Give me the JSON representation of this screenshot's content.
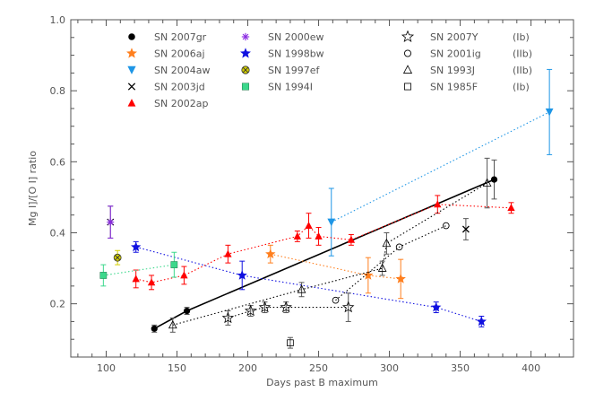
{
  "chart_data": {
    "type": "scatter",
    "xlabel": "Days past B maximum",
    "ylabel": "Mg I]/[O I] ratio",
    "xlim": [
      75,
      430
    ],
    "ylim": [
      0.05,
      1.0
    ],
    "xticks": [
      100,
      150,
      200,
      250,
      300,
      350,
      400
    ],
    "yticks": [
      0.2,
      0.4,
      0.6,
      0.8,
      1.0
    ],
    "grid": false,
    "legend_placement": "top, three columns",
    "series": [
      {
        "name": "SN 2007gr",
        "marker": "filled-circle",
        "color": "#000000",
        "line": "solid",
        "points": [
          {
            "x": 134,
            "y": 0.13,
            "err": 0.01
          },
          {
            "x": 157,
            "y": 0.18,
            "err": 0.01
          },
          {
            "x": 374,
            "y": 0.55,
            "err": 0.055
          }
        ]
      },
      {
        "name": "SN 2006aj",
        "marker": "filled-star",
        "color": "#ff7f1e",
        "line": "dotted",
        "points": [
          {
            "x": 216,
            "y": 0.34,
            "err": 0.025
          },
          {
            "x": 285,
            "y": 0.28,
            "err": 0.05
          },
          {
            "x": 308,
            "y": 0.27,
            "err": 0.055
          }
        ]
      },
      {
        "name": "SN 2004aw",
        "marker": "filled-triangle-down",
        "color": "#1e96e6",
        "line": "dotted",
        "points": [
          {
            "x": 259,
            "y": 0.43,
            "err": 0.095
          },
          {
            "x": 413,
            "y": 0.74,
            "err": 0.12
          }
        ]
      },
      {
        "name": "SN 2003jd",
        "marker": "cross",
        "color": "#000000",
        "line": "none",
        "points": [
          {
            "x": 103,
            "y": 0.43,
            "err": 0.045
          },
          {
            "x": 354,
            "y": 0.41,
            "err": 0.03
          }
        ]
      },
      {
        "name": "SN 2002ap",
        "marker": "filled-triangle-up",
        "color": "#ff0000",
        "line": "dotted",
        "points": [
          {
            "x": 121,
            "y": 0.27,
            "err": 0.025
          },
          {
            "x": 132,
            "y": 0.26,
            "err": 0.02
          },
          {
            "x": 155,
            "y": 0.28,
            "err": 0.025
          },
          {
            "x": 186,
            "y": 0.34,
            "err": 0.025
          },
          {
            "x": 235,
            "y": 0.39,
            "err": 0.015
          },
          {
            "x": 243,
            "y": 0.42,
            "err": 0.035
          },
          {
            "x": 250,
            "y": 0.39,
            "err": 0.025
          },
          {
            "x": 273,
            "y": 0.38,
            "err": 0.015
          },
          {
            "x": 334,
            "y": 0.48,
            "err": 0.025
          },
          {
            "x": 386,
            "y": 0.47,
            "err": 0.015
          }
        ]
      },
      {
        "name": "SN 2000ew",
        "marker": "asterisk",
        "color": "#8a2be2",
        "line": "none",
        "points": [
          {
            "x": 103,
            "y": 0.43,
            "err": 0.045
          }
        ]
      },
      {
        "name": "SN 1998bw",
        "marker": "filled-star",
        "color": "#1010e0",
        "line": "dotted",
        "points": [
          {
            "x": 121,
            "y": 0.36,
            "err": 0.015
          },
          {
            "x": 196,
            "y": 0.28,
            "err": 0.04
          },
          {
            "x": 333,
            "y": 0.19,
            "err": 0.015
          },
          {
            "x": 365,
            "y": 0.15,
            "err": 0.015
          }
        ]
      },
      {
        "name": "SN 1997ef",
        "marker": "circle-cross",
        "color": "#d4d000",
        "line": "none",
        "points": [
          {
            "x": 108,
            "y": 0.33,
            "err": 0.02
          }
        ]
      },
      {
        "name": "SN 1994I",
        "marker": "filled-square",
        "color": "#3cd88c",
        "line": "dotted",
        "points": [
          {
            "x": 98,
            "y": 0.28,
            "err": 0.03
          },
          {
            "x": 148,
            "y": 0.31,
            "err": 0.035
          }
        ]
      },
      {
        "name": "SN 2007Y",
        "marker": "open-star",
        "color": "#000000",
        "line": "dotted",
        "note": "(Ib)",
        "points": [
          {
            "x": 186,
            "y": 0.16,
            "err": 0.02
          },
          {
            "x": 202,
            "y": 0.18,
            "err": 0.015
          },
          {
            "x": 212,
            "y": 0.19,
            "err": 0.015
          },
          {
            "x": 227,
            "y": 0.19,
            "err": 0.015
          },
          {
            "x": 271,
            "y": 0.19,
            "err": 0.04
          }
        ]
      },
      {
        "name": "SN 2001ig",
        "marker": "open-circle",
        "color": "#000000",
        "line": "dotted",
        "note": "(IIb)",
        "points": [
          {
            "x": 262,
            "y": 0.21,
            "err": 0.0
          },
          {
            "x": 307,
            "y": 0.36,
            "err": 0.0
          },
          {
            "x": 340,
            "y": 0.42,
            "err": 0.0
          }
        ]
      },
      {
        "name": "SN 1993J",
        "marker": "open-triangle",
        "color": "#000000",
        "line": "dotted",
        "note": "(IIb)",
        "points": [
          {
            "x": 147,
            "y": 0.14,
            "err": 0.02
          },
          {
            "x": 238,
            "y": 0.24,
            "err": 0.02
          },
          {
            "x": 295,
            "y": 0.3,
            "err": 0.02
          },
          {
            "x": 298,
            "y": 0.37,
            "err": 0.03
          },
          {
            "x": 369,
            "y": 0.54,
            "err": 0.07
          }
        ]
      },
      {
        "name": "SN 1985F",
        "marker": "open-square",
        "color": "#000000",
        "line": "none",
        "note": "(Ib)",
        "points": [
          {
            "x": 230,
            "y": 0.09,
            "err": 0.015
          }
        ]
      }
    ],
    "legend": [
      {
        "label": "SN 2007gr",
        "series": 0
      },
      {
        "label": "SN 2006aj",
        "series": 1
      },
      {
        "label": "SN 2004aw",
        "series": 2
      },
      {
        "label": "SN 2003jd",
        "series": 3
      },
      {
        "label": "SN 2002ap",
        "series": 4
      },
      {
        "label": "SN 2000ew",
        "series": 5
      },
      {
        "label": "SN 1998bw",
        "series": 6
      },
      {
        "label": "SN 1997ef",
        "series": 7
      },
      {
        "label": "SN 1994I",
        "series": 8
      },
      {
        "label": "SN 2007Y",
        "series": 9,
        "note": "(Ib)"
      },
      {
        "label": "SN 2001ig",
        "series": 10,
        "note": "(IIb)"
      },
      {
        "label": "SN 1993J",
        "series": 11,
        "note": "(IIb)"
      },
      {
        "label": "SN 1985F",
        "series": 12,
        "note": "(Ib)"
      }
    ]
  }
}
